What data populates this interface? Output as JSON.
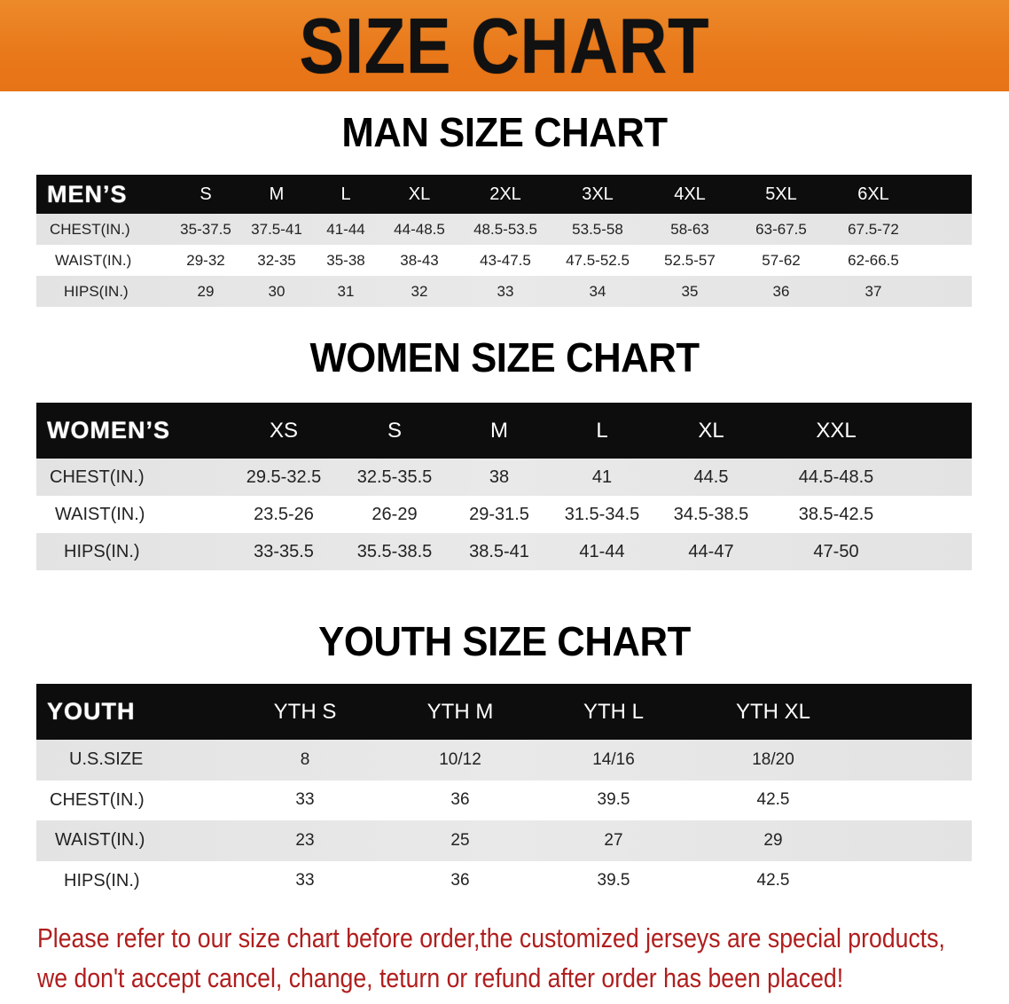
{
  "banner": {
    "title": "SIZE CHART",
    "color": "#e9781a"
  },
  "men": {
    "title": "MAN SIZE CHART",
    "header_label": "MEN’S",
    "sizes": [
      "S",
      "M",
      "L",
      "XL",
      "2XL",
      "3XL",
      "4XL",
      "5XL",
      "6XL"
    ],
    "rows": [
      {
        "label": "CHEST(IN.)",
        "values": [
          "35-37.5",
          "37.5-41",
          "41-44",
          "44-48.5",
          "48.5-53.5",
          "53.5-58",
          "58-63",
          "63-67.5",
          "67.5-72"
        ]
      },
      {
        "label": "WAIST(IN.)",
        "values": [
          "29-32",
          "32-35",
          "35-38",
          "38-43",
          "43-47.5",
          "47.5-52.5",
          "52.5-57",
          "57-62",
          "62-66.5"
        ]
      },
      {
        "label": "HIPS(IN.)",
        "values": [
          "29",
          "30",
          "31",
          "32",
          "33",
          "34",
          "35",
          "36",
          "37"
        ]
      }
    ]
  },
  "women": {
    "title": "WOMEN SIZE CHART",
    "header_label": "WOMEN’S",
    "sizes": [
      "XS",
      "S",
      "M",
      "L",
      "XL",
      "XXL"
    ],
    "rows": [
      {
        "label": "CHEST(IN.)",
        "values": [
          "29.5-32.5",
          "32.5-35.5",
          "38",
          "41",
          "44.5",
          "44.5-48.5"
        ]
      },
      {
        "label": "WAIST(IN.)",
        "values": [
          "23.5-26",
          "26-29",
          "29-31.5",
          "31.5-34.5",
          "34.5-38.5",
          "38.5-42.5"
        ]
      },
      {
        "label": "HIPS(IN.)",
        "values": [
          "33-35.5",
          "35.5-38.5",
          "38.5-41",
          "41-44",
          "44-47",
          "47-50"
        ]
      }
    ]
  },
  "youth": {
    "title": "YOUTH SIZE CHART",
    "header_label": "YOUTH",
    "sizes": [
      "YTH S",
      "YTH M",
      "YTH L",
      "YTH XL"
    ],
    "rows": [
      {
        "label": "U.S.SIZE",
        "values": [
          "8",
          "10/12",
          "14/16",
          "18/20"
        ]
      },
      {
        "label": "CHEST(IN.)",
        "values": [
          "33",
          "36",
          "39.5",
          "42.5"
        ]
      },
      {
        "label": "WAIST(IN.)",
        "values": [
          "23",
          "25",
          "27",
          "29"
        ]
      },
      {
        "label": "HIPS(IN.)",
        "values": [
          "33",
          "36",
          "39.5",
          "42.5"
        ]
      }
    ]
  },
  "notice": {
    "line1": "Please refer to our size chart before order,the customized jerseys are special products,",
    "line2": "we don't accept cancel, change, teturn or refund after order has been placed!",
    "color": "#b01e1e"
  }
}
